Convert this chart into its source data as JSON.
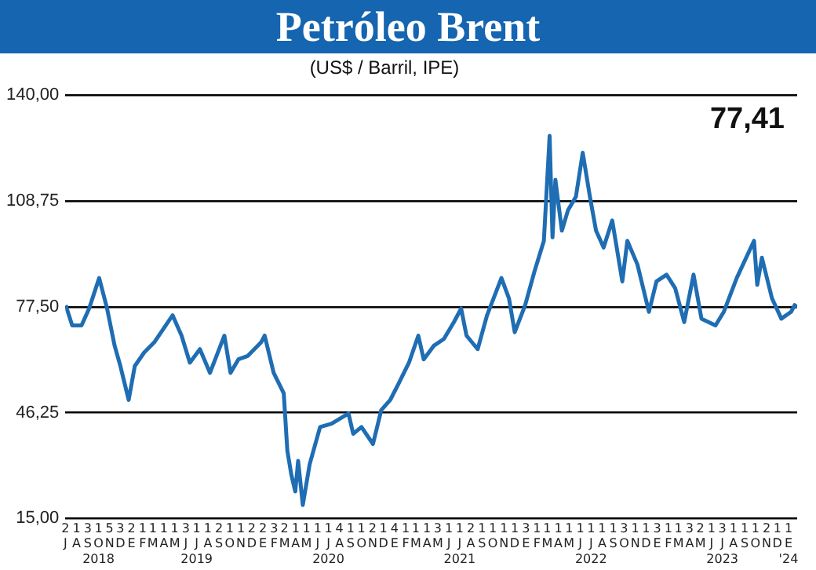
{
  "chart_data": {
    "type": "line",
    "title": "Petróleo Brent",
    "subtitle": "(US$ / Barril, IPE)",
    "annotations": [
      "77,41"
    ],
    "xlim": [
      "2018-07-01",
      "2024-01-25"
    ],
    "xticks": [
      {
        "value": "2018-07",
        "label": "2\nJ"
      },
      {
        "value": "2018-08",
        "label": "1\nA"
      },
      {
        "value": "2018-09",
        "label": "3\nS"
      },
      {
        "value": "2018-10",
        "label": "1\nO\n2018"
      },
      {
        "value": "2018-11",
        "label": "5\nN"
      },
      {
        "value": "2018-12",
        "label": "3\nD"
      },
      {
        "value": "2019-01",
        "label": "2\nE"
      },
      {
        "value": "2019-02",
        "label": "1\nF"
      },
      {
        "value": "2019-03",
        "label": "1\nM"
      },
      {
        "value": "2019-04",
        "label": "1\nA"
      },
      {
        "value": "2019-05",
        "label": "1\nM"
      },
      {
        "value": "2019-06",
        "label": "3\nJ"
      },
      {
        "value": "2019-07",
        "label": "1\nJ\n2019"
      },
      {
        "value": "2019-08",
        "label": "1\nA"
      },
      {
        "value": "2019-09",
        "label": "2\nS"
      },
      {
        "value": "2019-10",
        "label": "1\nO"
      },
      {
        "value": "2019-11",
        "label": "1\nN"
      },
      {
        "value": "2019-12",
        "label": "2\nD"
      },
      {
        "value": "2020-01",
        "label": "2\nE"
      },
      {
        "value": "2020-02",
        "label": "3\nF"
      },
      {
        "value": "2020-03",
        "label": "2\nM"
      },
      {
        "value": "2020-04",
        "label": "1\nA"
      },
      {
        "value": "2020-05",
        "label": "1\nM"
      },
      {
        "value": "2020-06",
        "label": "1\nJ"
      },
      {
        "value": "2020-07",
        "label": "1\nJ\n2020"
      },
      {
        "value": "2020-08",
        "label": "4\nA"
      },
      {
        "value": "2020-09",
        "label": "1\nS"
      },
      {
        "value": "2020-10",
        "label": "1\nO"
      },
      {
        "value": "2020-11",
        "label": "2\nN"
      },
      {
        "value": "2020-12",
        "label": "1\nD"
      },
      {
        "value": "2021-01",
        "label": "4\nE"
      },
      {
        "value": "2021-02",
        "label": "1\nF"
      },
      {
        "value": "2021-03",
        "label": "1\nM"
      },
      {
        "value": "2021-04",
        "label": "1\nA"
      },
      {
        "value": "2021-05",
        "label": "3\nM"
      },
      {
        "value": "2021-06",
        "label": "1\nJ"
      },
      {
        "value": "2021-07",
        "label": "1\nJ\n2021"
      },
      {
        "value": "2021-08",
        "label": "2\nA"
      },
      {
        "value": "2021-09",
        "label": "1\nS"
      },
      {
        "value": "2021-10",
        "label": "1\nO"
      },
      {
        "value": "2021-11",
        "label": "1\nN"
      },
      {
        "value": "2021-12",
        "label": "1\nD"
      },
      {
        "value": "2022-01",
        "label": "3\nE"
      },
      {
        "value": "2022-02",
        "label": "1\nF"
      },
      {
        "value": "2022-03",
        "label": "1\nM"
      },
      {
        "value": "2022-04",
        "label": "1\nA"
      },
      {
        "value": "2022-05",
        "label": "1\nM"
      },
      {
        "value": "2022-06",
        "label": "1\nJ"
      },
      {
        "value": "2022-07",
        "label": "1\nJ\n2022"
      },
      {
        "value": "2022-08",
        "label": "1\nA"
      },
      {
        "value": "2022-09",
        "label": "1\nS"
      },
      {
        "value": "2022-10",
        "label": "3\nO"
      },
      {
        "value": "2022-11",
        "label": "1\nN"
      },
      {
        "value": "2022-12",
        "label": "1\nD"
      },
      {
        "value": "2023-01",
        "label": "3\nE"
      },
      {
        "value": "2023-02",
        "label": "1\nF"
      },
      {
        "value": "2023-03",
        "label": "1\nM"
      },
      {
        "value": "2023-04",
        "label": "3\nA"
      },
      {
        "value": "2023-05",
        "label": "2\nM"
      },
      {
        "value": "2023-06",
        "label": "1\nJ"
      },
      {
        "value": "2023-07",
        "label": "3\nJ\n2023"
      },
      {
        "value": "2023-08",
        "label": "1\nA"
      },
      {
        "value": "2023-09",
        "label": "1\nS"
      },
      {
        "value": "2023-10",
        "label": "1\nO"
      },
      {
        "value": "2023-11",
        "label": "2\nN"
      },
      {
        "value": "2023-12",
        "label": "1\nD"
      },
      {
        "value": "2024-01",
        "label": "1\nE\n'24"
      }
    ],
    "ylim": [
      15,
      140
    ],
    "yticks": [
      {
        "value": 15,
        "label": "15,00"
      },
      {
        "value": 46.25,
        "label": "46,25"
      },
      {
        "value": 77.5,
        "label": "77,50"
      },
      {
        "value": 108.75,
        "label": "108,75"
      },
      {
        "value": 140,
        "label": "140,00"
      }
    ],
    "grid": "y",
    "legend": false,
    "marker": "none",
    "line_style": "solid",
    "series": [
      {
        "color": "#1f6db3",
        "x": [
          "2018-07-02",
          "2018-07-20",
          "2018-08-15",
          "2018-09-05",
          "2018-10-03",
          "2018-10-25",
          "2018-11-15",
          "2018-12-01",
          "2018-12-24",
          "2019-01-10",
          "2019-02-05",
          "2019-03-05",
          "2019-04-25",
          "2019-05-20",
          "2019-06-12",
          "2019-07-10",
          "2019-08-07",
          "2019-09-16",
          "2019-10-03",
          "2019-10-25",
          "2019-11-20",
          "2019-12-27",
          "2020-01-06",
          "2020-01-31",
          "2020-02-28",
          "2020-03-09",
          "2020-03-20",
          "2020-03-31",
          "2020-04-08",
          "2020-04-21",
          "2020-05-10",
          "2020-06-08",
          "2020-07-10",
          "2020-08-26",
          "2020-09-08",
          "2020-10-01",
          "2020-11-02",
          "2020-11-25",
          "2020-12-20",
          "2021-01-13",
          "2021-02-10",
          "2021-03-08",
          "2021-03-23",
          "2021-04-20",
          "2021-05-18",
          "2021-06-15",
          "2021-07-05",
          "2021-07-20",
          "2021-08-20",
          "2021-09-15",
          "2021-10-25",
          "2021-11-15",
          "2021-12-01",
          "2021-12-30",
          "2022-01-25",
          "2022-02-20",
          "2022-03-08",
          "2022-03-16",
          "2022-03-24",
          "2022-04-11",
          "2022-04-28",
          "2022-05-20",
          "2022-06-08",
          "2022-06-28",
          "2022-07-15",
          "2022-08-05",
          "2022-08-29",
          "2022-09-26",
          "2022-10-10",
          "2022-11-07",
          "2022-12-09",
          "2022-12-30",
          "2023-01-27",
          "2023-02-20",
          "2023-03-17",
          "2023-04-12",
          "2023-05-04",
          "2023-06-12",
          "2023-07-05",
          "2023-08-10",
          "2023-09-27",
          "2023-10-06",
          "2023-10-19",
          "2023-11-16",
          "2023-12-12",
          "2024-01-08",
          "2024-01-18",
          "2024-01-25"
        ],
        "values": [
          78,
          72,
          72,
          77,
          86,
          77,
          66,
          60,
          50,
          60,
          64,
          67,
          75,
          69,
          61,
          65,
          58,
          69,
          58,
          62,
          63,
          67,
          69,
          58,
          52,
          35,
          28,
          23,
          32,
          19,
          31,
          42,
          43,
          46,
          40,
          42,
          37,
          47,
          50,
          55,
          61,
          69,
          62,
          66,
          68,
          73,
          77,
          69,
          65,
          75,
          86,
          80,
          70,
          78,
          88,
          97,
          128,
          98,
          115,
          100,
          106,
          110,
          123,
          110,
          100,
          95,
          103,
          85,
          97,
          90,
          76,
          85,
          87,
          83,
          73,
          87,
          74,
          72,
          76,
          86,
          97,
          84,
          92,
          80,
          74,
          76,
          78,
          77.41
        ]
      }
    ]
  }
}
